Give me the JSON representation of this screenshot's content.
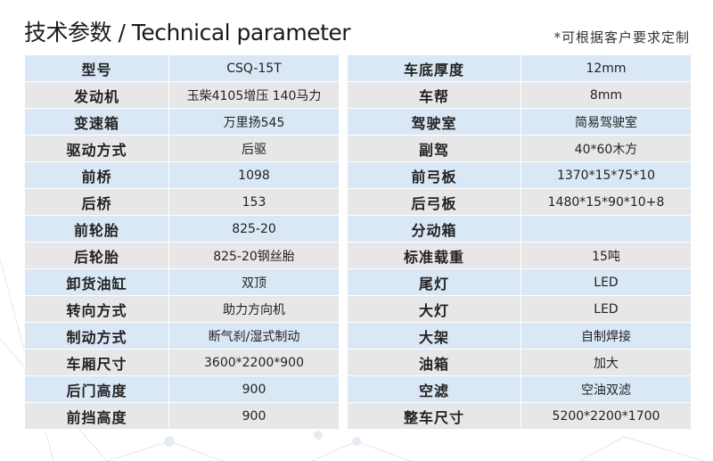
{
  "header": {
    "title": "技术参数 / Technical parameter",
    "note": "*可根据客户要求定制"
  },
  "left_table": [
    {
      "label": "型号",
      "value": "CSQ-15T"
    },
    {
      "label": "发动机",
      "value": "玉柴4105增压  140马力"
    },
    {
      "label": "变速箱",
      "value": "万里扬545"
    },
    {
      "label": "驱动方式",
      "value": "后驱"
    },
    {
      "label": "前桥",
      "value": "1098"
    },
    {
      "label": "后桥",
      "value": "153"
    },
    {
      "label": "前轮胎",
      "value": "825-20"
    },
    {
      "label": "后轮胎",
      "value": "825-20钢丝胎"
    },
    {
      "label": "卸货油缸",
      "value": "双顶"
    },
    {
      "label": "转向方式",
      "value": "助力方向机"
    },
    {
      "label": "制动方式",
      "value": "断气刹/湿式制动"
    },
    {
      "label": "车厢尺寸",
      "value": "3600*2200*900"
    },
    {
      "label": "后门高度",
      "value": "900"
    },
    {
      "label": "前挡高度",
      "value": "900"
    }
  ],
  "right_table": [
    {
      "label": "车底厚度",
      "value": "12mm"
    },
    {
      "label": "车帮",
      "value": "8mm"
    },
    {
      "label": "驾驶室",
      "value": "简易驾驶室"
    },
    {
      "label": "副驾",
      "value": "40*60木方"
    },
    {
      "label": "前弓板",
      "value": "1370*15*75*10"
    },
    {
      "label": "后弓板",
      "value": "1480*15*90*10+8"
    },
    {
      "label": "分动箱",
      "value": ""
    },
    {
      "label": "标准载重",
      "value": "15吨"
    },
    {
      "label": "尾灯",
      "value": "LED"
    },
    {
      "label": "大灯",
      "value": "LED"
    },
    {
      "label": "大架",
      "value": "自制焊接"
    },
    {
      "label": "油箱",
      "value": "加大"
    },
    {
      "label": "空滤",
      "value": "空油双滤"
    },
    {
      "label": "整车尺寸",
      "value": "5200*2200*1700"
    }
  ]
}
